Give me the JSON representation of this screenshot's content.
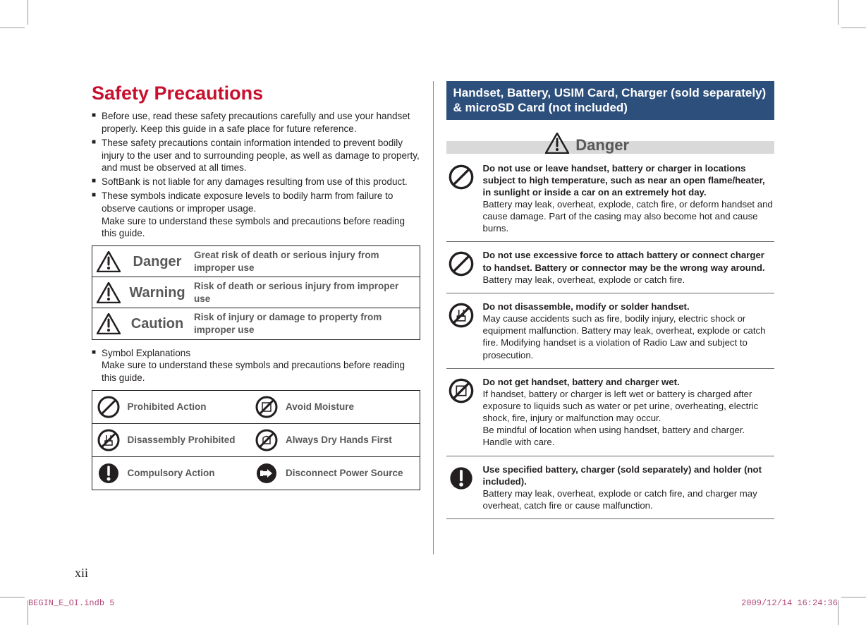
{
  "colors": {
    "title_red": "#c8102e",
    "gray_text": "#58585a",
    "black": "#231f20",
    "heading_bg": "#2d4f7c",
    "heading_fg": "#ffffff",
    "danger_bar_bg": "#d9d9d9",
    "crop_gray": "#999999",
    "footer_magenta": "#b04a7b"
  },
  "title": "Safety Precautions",
  "bullets": [
    "Before use, read these safety precautions carefully and use your handset properly. Keep this guide in a safe place for future reference.",
    "These safety precautions contain information intended to prevent bodily injury to the user and to surrounding people, as well as damage to property, and must be observed at all times.",
    "SoftBank is not liable for any damages resulting from use of this product.",
    "These symbols indicate exposure levels to bodily harm from failure to observe cautions or improper usage.\nMake sure to understand these symbols and precautions before reading this guide."
  ],
  "danger_table": [
    {
      "label": "Danger",
      "desc": "Great risk of death or serious injury from improper use"
    },
    {
      "label": "Warning",
      "desc": "Risk of death or serious injury from improper use"
    },
    {
      "label": "Caution",
      "desc": "Risk of injury or damage to property from improper use"
    }
  ],
  "symbol_expl_header": "Symbol Explanations",
  "symbol_expl_sub": "Make sure to understand these symbols and precautions before reading this guide.",
  "symbol_table": [
    [
      {
        "icon": "prohibit",
        "label": "Prohibited Action"
      },
      {
        "icon": "moisture",
        "label": "Avoid Moisture"
      }
    ],
    [
      {
        "icon": "nodisasm",
        "label": "Disassembly Prohibited"
      },
      {
        "icon": "dryhands",
        "label": "Always Dry Hands First"
      }
    ],
    [
      {
        "icon": "compulsory",
        "label": "Compulsory Action"
      },
      {
        "icon": "unplug",
        "label": "Disconnect Power Source"
      }
    ]
  ],
  "right_heading": "Handset, Battery, USIM Card, Charger (sold separately) & microSD Card (not included)",
  "danger_bar_label": "Danger",
  "danger_items": [
    {
      "icon": "prohibit",
      "bold": "Do not use or leave handset, battery or charger in locations subject to high temperature, such as near an open flame/heater, in sunlight or inside a car on an extremely hot day.",
      "body": "Battery may leak, overheat, explode, catch fire, or deform handset and cause damage. Part of the casing may also become hot and cause burns."
    },
    {
      "icon": "prohibit",
      "bold": "Do not use excessive force to attach battery or connect charger to handset. Battery or connector may be the wrong way around.",
      "body": "Battery may leak, overheat, explode or catch fire."
    },
    {
      "icon": "nodisasm",
      "bold": "Do not disassemble, modify or solder handset.",
      "body": "May cause accidents such as fire, bodily injury, electric shock or equipment malfunction. Battery may leak, overheat, explode or catch fire. Modifying handset is a violation of Radio Law and subject to prosecution."
    },
    {
      "icon": "moisture",
      "bold": "Do not get handset, battery and charger wet.",
      "body": "If handset, battery or charger is left wet or battery is charged after exposure to liquids such as water or pet urine, overheating, electric shock, fire, injury or malfunction may occur.\nBe mindful of location when using handset, battery and charger. Handle with care."
    },
    {
      "icon": "compulsory",
      "bold": "Use specified battery, charger (sold separately) and holder (not included).",
      "body": "Battery may leak, overheat, explode or catch fire, and charger may overheat, catch fire or cause malfunction."
    }
  ],
  "page_number": "xii",
  "footer_left": "BEGIN_E_OI.indb   5",
  "footer_right": "2009/12/14   16:24:36"
}
